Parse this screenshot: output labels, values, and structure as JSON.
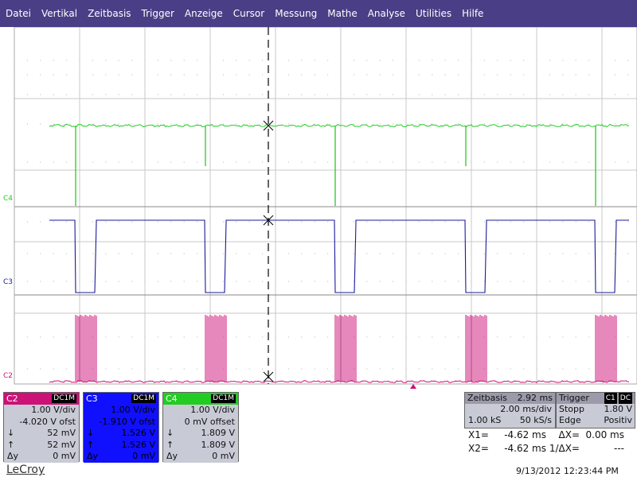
{
  "menu": [
    "Datei",
    "Vertikal",
    "Zeitbasis",
    "Trigger",
    "Anzeige",
    "Cursor",
    "Messung",
    "Mathe",
    "Analyse",
    "Utilities",
    "Hilfe"
  ],
  "traces": {
    "C4": {
      "label": "C4",
      "color": "#22cc22"
    },
    "C3": {
      "label": "C3",
      "color": "#1a1a9a"
    },
    "C2": {
      "label": "C2",
      "color": "#cc1177"
    }
  },
  "channels": [
    {
      "name": "C2",
      "coupling": "DC1M",
      "scale": "1.00 V/div",
      "offset": "-4.020 V ofst",
      "down_sym": "↓",
      "down": "52 mV",
      "up_sym": "↑",
      "up": "52 mV",
      "dy_sym": "Δy",
      "dy": "0 mV",
      "color": "#cc1177",
      "body": "#c8cbd6"
    },
    {
      "name": "C3",
      "coupling": "DC1M",
      "scale": "1.00 V/div",
      "offset": "-1.910 V ofst",
      "down_sym": "↓",
      "down": "1.526 V",
      "up_sym": "↑",
      "up": "1.526 V",
      "dy_sym": "Δy",
      "dy": "0 mV",
      "color": "#1010ff",
      "body": "#1010ff"
    },
    {
      "name": "C4",
      "coupling": "DC1M",
      "scale": "1.00 V/div",
      "offset": "0 mV offset",
      "down_sym": "↓",
      "down": "1.809 V",
      "up_sym": "↑",
      "up": "1.809 V",
      "dy_sym": "Δy",
      "dy": "0 mV",
      "color": "#22cc22",
      "body": "#c8cbd6"
    }
  ],
  "timebase": {
    "label": "Zeitbasis",
    "delay": "2.92 ms",
    "per_div": "2.00 ms/div",
    "samples": "1.00 kS",
    "rate": "50 kS/s"
  },
  "trigger": {
    "label": "Trigger",
    "source": "C1",
    "coupling": "DC",
    "mode": "Stopp",
    "level": "1.80 V",
    "type": "Edge",
    "slope": "Positiv"
  },
  "cursors": {
    "x1_label": "X1=",
    "x1": "-4.62 ms",
    "dx_label": "ΔX=",
    "dx": "0.00 ms",
    "x2_label": "X2=",
    "x2": "-4.62 ms",
    "inv_dx_label": "1/ΔX=",
    "inv_dx": "---"
  },
  "brand": "LeCroy",
  "datetime": "9/13/2012 12:23:44 PM"
}
